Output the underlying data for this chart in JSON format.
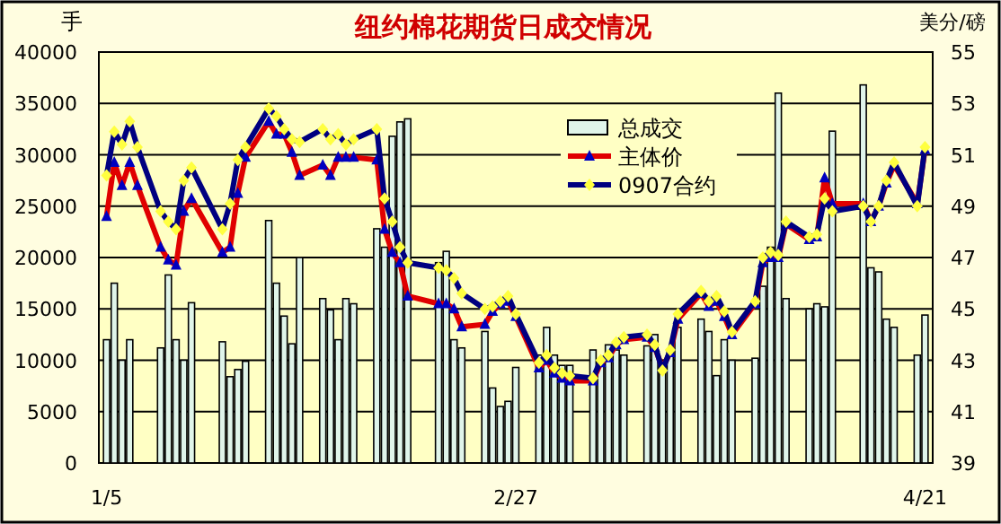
{
  "chart_data": {
    "type": "bar",
    "title": "纽约棉花期货日成交情况",
    "ylabel": "手",
    "y2label": "美分/磅",
    "x": [
      "--01-05",
      "--01-06",
      "--01-07",
      "--01-08",
      "--01-09",
      "--01-12",
      "--01-13",
      "--01-14",
      "--01-15",
      "--01-16",
      "--01-20",
      "--01-21",
      "--01-22",
      "--01-23",
      "--01-26",
      "--01-27",
      "--01-28",
      "--01-29",
      "--01-30",
      "--02-02",
      "--02-03",
      "--02-04",
      "--02-05",
      "--02-06",
      "--02-09",
      "--02-10",
      "--02-11",
      "--02-12",
      "--02-13",
      "--02-17",
      "--02-18",
      "--02-19",
      "--02-20",
      "--02-23",
      "--02-24",
      "--02-25",
      "--02-26",
      "--02-27",
      "--03-02",
      "--03-03",
      "--03-04",
      "--03-05",
      "--03-06",
      "--03-09",
      "--03-10",
      "--03-11",
      "--03-12",
      "--03-13",
      "--03-16",
      "--03-17",
      "--03-18",
      "--03-19",
      "--03-20",
      "--03-23",
      "--03-24",
      "--03-25",
      "--03-26",
      "--03-27",
      "--03-30",
      "--03-31",
      "--04-01",
      "--04-02",
      "--04-03",
      "--04-06",
      "--04-07",
      "--04-08",
      "--04-09",
      "--04-13",
      "--04-14",
      "--04-15",
      "--04-16",
      "--04-17",
      "--04-20",
      "--04-21"
    ],
    "series": [
      {
        "name": "总成交",
        "axis": "y",
        "color": "#e0f5ea",
        "values": [
          12000,
          17500,
          10000,
          12000,
          null,
          11200,
          18300,
          12000,
          10000,
          15600,
          11800,
          8400,
          9100,
          9900,
          23600,
          17500,
          14300,
          11600,
          20000,
          16000,
          14900,
          12000,
          16000,
          15500,
          22800,
          21000,
          31800,
          33200,
          33500,
          19500,
          20600,
          12000,
          11200,
          12800,
          7300,
          5500,
          6000,
          9300,
          10500,
          13200,
          10500,
          9500,
          9500,
          11000,
          10000,
          11500,
          11000,
          10500,
          11400,
          12500,
          10000,
          11000,
          13200,
          14000,
          12800,
          8500,
          12000,
          10000,
          10200,
          17200,
          21000,
          36000,
          16000,
          15000,
          15500,
          15200,
          32300,
          36800,
          19000,
          18600,
          14000,
          13200,
          10500,
          14400
        ]
      },
      {
        "name": "主体价",
        "type": "line",
        "axis": "y2",
        "color": "#e00000",
        "marker": "triangle",
        "values": [
          48.6,
          50.7,
          49.8,
          50.7,
          49.8,
          47.4,
          46.9,
          46.7,
          48.8,
          49.3,
          47.2,
          47.4,
          49.5,
          50.9,
          52.3,
          51.8,
          51.8,
          51.1,
          50.2,
          50.6,
          50.2,
          50.9,
          50.9,
          50.9,
          50.8,
          48.1,
          47.2,
          46.8,
          45.5,
          45.2,
          45.2,
          45.0,
          44.3,
          44.4,
          44.9,
          45.2,
          45.3,
          44.7,
          42.7,
          43.0,
          42.5,
          42.3,
          42.2,
          42.2,
          42.9,
          43.1,
          43.6,
          43.8,
          43.9,
          43.5,
          42.7,
          43.3,
          44.6,
          45.6,
          45.1,
          45.3,
          44.7,
          44.0,
          45.2,
          46.8,
          47.0,
          47.0,
          48.3,
          47.7,
          47.8,
          50.1,
          49.1,
          49.1,
          48.4,
          49.0,
          49.9,
          50.6,
          49.1,
          51.2
        ]
      },
      {
        "name": "0907合约",
        "type": "line",
        "axis": "y2",
        "color": "#000080",
        "marker": "diamond",
        "values": [
          50.2,
          51.9,
          51.4,
          52.3,
          51.3,
          48.8,
          48.4,
          48.1,
          50.0,
          50.5,
          48.1,
          49.1,
          50.8,
          51.3,
          52.8,
          52.5,
          52.0,
          51.6,
          51.5,
          52.0,
          51.6,
          51.8,
          51.4,
          51.6,
          52.0,
          49.3,
          48.4,
          47.4,
          46.8,
          46.6,
          46.5,
          46.2,
          45.6,
          45.0,
          45.1,
          45.3,
          45.5,
          44.8,
          42.9,
          43.2,
          42.7,
          42.5,
          42.4,
          42.3,
          43.0,
          43.2,
          43.7,
          43.9,
          44.0,
          43.6,
          42.6,
          43.4,
          44.8,
          45.7,
          45.3,
          45.5,
          44.9,
          44.1,
          45.3,
          47.0,
          47.2,
          47.1,
          48.4,
          47.8,
          47.9,
          49.3,
          48.8,
          49.0,
          48.4,
          49.0,
          50.0,
          50.7,
          49.0,
          51.3
        ]
      }
    ],
    "xlim": [
      "--01-04",
      "--04-22"
    ],
    "xticks": [
      {
        "value": "--01-05",
        "label": "1/5"
      },
      {
        "value": "--02-27",
        "label": "2/27"
      },
      {
        "value": "--04-21",
        "label": "4/21"
      }
    ],
    "ylim": [
      0,
      40000
    ],
    "yticks": [
      0,
      5000,
      10000,
      15000,
      20000,
      25000,
      30000,
      35000,
      40000
    ],
    "y2lim": [
      39,
      55
    ],
    "y2ticks": [
      39,
      41,
      43,
      45,
      47,
      49,
      51,
      53,
      55
    ],
    "grid": "y",
    "legend": "top"
  }
}
